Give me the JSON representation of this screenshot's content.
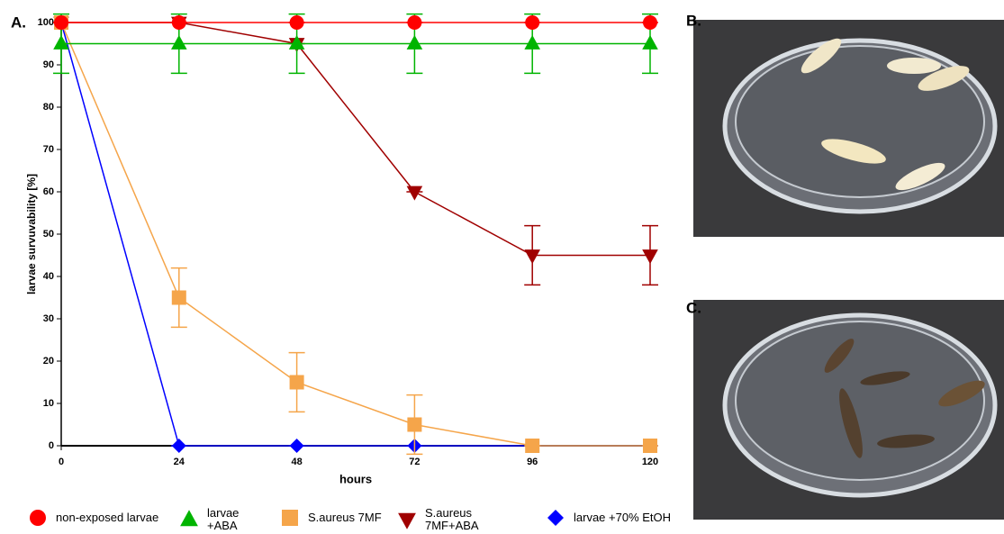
{
  "panel_labels": [
    "A.",
    "B.",
    "C."
  ],
  "chart_data": {
    "type": "line",
    "x_label": "hours",
    "y_label": "larvae survuvability [%]",
    "x": [
      0,
      24,
      48,
      72,
      96,
      120
    ],
    "xlim": [
      0,
      120
    ],
    "xticks": [
      0,
      24,
      48,
      72,
      96,
      120
    ],
    "ylim": [
      0,
      100
    ],
    "yticks": [
      0,
      10,
      20,
      30,
      40,
      50,
      60,
      70,
      80,
      90,
      100
    ],
    "grid": false,
    "series": [
      {
        "name": "non-exposed larvae",
        "color": "#ff0000",
        "marker": "circle",
        "values": [
          100,
          100,
          100,
          100,
          100,
          100
        ],
        "errors": [
          0,
          0,
          0,
          0,
          0,
          0
        ]
      },
      {
        "name": "larvae +ABA",
        "color": "#00b400",
        "marker": "triangle",
        "values": [
          95,
          95,
          95,
          95,
          95,
          95
        ],
        "errors": [
          7,
          7,
          7,
          7,
          7,
          7
        ]
      },
      {
        "name": "S.aureus 7MF",
        "color": "#f5a54a",
        "marker": "square",
        "values": [
          100,
          35,
          15,
          5,
          0,
          0
        ],
        "errors": [
          0,
          7,
          7,
          7,
          0,
          0
        ]
      },
      {
        "name": "S.aureus 7MF+ABA",
        "color": "#a00000",
        "marker": "triangle-down",
        "values": [
          100,
          100,
          95,
          60,
          45,
          45
        ],
        "errors": [
          0,
          0,
          0,
          0,
          7,
          7
        ]
      },
      {
        "name": "larvae +70% EtOH",
        "color": "#0000ff",
        "marker": "diamond",
        "values": [
          100,
          0,
          0,
          0,
          0,
          0
        ],
        "errors": [
          0,
          0,
          0,
          0,
          0,
          0
        ]
      }
    ]
  }
}
